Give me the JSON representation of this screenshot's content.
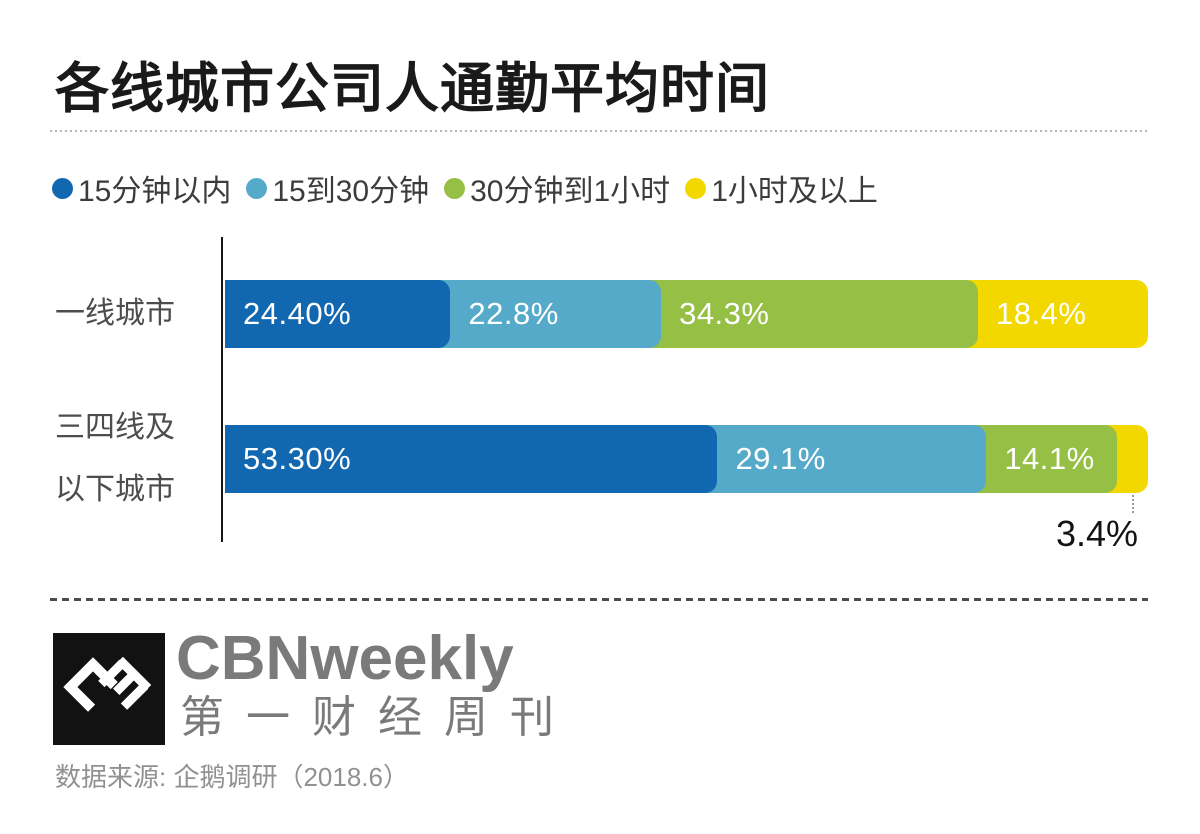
{
  "title": "各线城市公司人通勤平均时间",
  "chart_data": {
    "type": "bar",
    "orientation": "horizontal-stacked",
    "unit": "percent",
    "legend_position": "top",
    "grid": false,
    "xlim": [
      0,
      100
    ],
    "series": [
      {
        "name": "15分钟以内",
        "color": "#1268b0"
      },
      {
        "name": "15到30分钟",
        "color": "#55aaca"
      },
      {
        "name": "30分钟到1小时",
        "color": "#95bf45"
      },
      {
        "name": "1小时及以上",
        "color": "#f3d800"
      }
    ],
    "categories": [
      "一线城市",
      "三四线及以下城市"
    ],
    "rows": [
      {
        "category_lines": [
          "一线城市"
        ],
        "values": [
          24.4,
          22.8,
          34.3,
          18.4
        ],
        "labels": [
          "24.40%",
          "22.8%",
          "34.3%",
          "18.4%"
        ],
        "outside_label_index": -1
      },
      {
        "category_lines": [
          "三四线及",
          "以下城市"
        ],
        "values": [
          53.3,
          29.1,
          14.1,
          3.4
        ],
        "labels": [
          "53.30%",
          "29.1%",
          "14.1%",
          "3.4%"
        ],
        "outside_label_index": 3
      }
    ]
  },
  "footer": {
    "brand_latin": "CBNweekly",
    "brand_cn": "第一财经周刊",
    "source": "数据来源: 企鹅调研（2018.6）"
  }
}
